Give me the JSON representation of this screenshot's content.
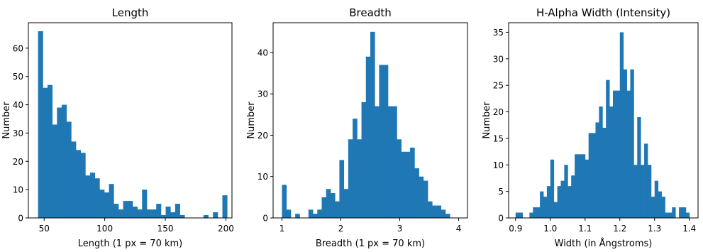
{
  "chart_data": [
    {
      "type": "bar",
      "title": "Length",
      "xlabel": "Length (1 px = 70 km)",
      "ylabel": "Number",
      "xlim": [
        37,
        205
      ],
      "ylim": [
        0,
        69
      ],
      "xticks": [
        50,
        100,
        150,
        200
      ],
      "yticks": [
        0,
        10,
        20,
        30,
        40,
        50,
        60
      ],
      "bin_start": 45,
      "bin_width": 3.9,
      "values": [
        66,
        46,
        47,
        33,
        39,
        40,
        34,
        27,
        24,
        23,
        15,
        16,
        14,
        10,
        9,
        12,
        5,
        3,
        6,
        6,
        4,
        3,
        10,
        3,
        3,
        5,
        1,
        4,
        2,
        5,
        1,
        0,
        0,
        0,
        0,
        1,
        0,
        2,
        0,
        8
      ],
      "color": "#1f77b4"
    },
    {
      "type": "bar",
      "title": "Breadth",
      "xlabel": "Breadth (1 px = 70 km)",
      "ylabel": "Number",
      "xlim": [
        0.85,
        4.15
      ],
      "ylim": [
        0,
        47.2
      ],
      "xticks": [
        1,
        2,
        3,
        4
      ],
      "yticks": [
        0,
        10,
        20,
        30,
        40
      ],
      "bin_start": 1.0,
      "bin_width": 0.075,
      "values": [
        8,
        2,
        0,
        1,
        0,
        0,
        2,
        1,
        2,
        5,
        7,
        6,
        4,
        14,
        7,
        19,
        24,
        19,
        28,
        39,
        45,
        27,
        37,
        37,
        27,
        27,
        19,
        16,
        16,
        17,
        12,
        10,
        9,
        4,
        3,
        3,
        2,
        1
      ],
      "color": "#1f77b4"
    },
    {
      "type": "bar",
      "title": "H-Alpha Width (Intensity)",
      "xlabel": "Width (in Ångstroms)",
      "ylabel": "Number",
      "xlim": [
        0.88,
        1.425
      ],
      "ylim": [
        0,
        36.8
      ],
      "xticks": [
        0.9,
        1.0,
        1.1,
        1.2,
        1.3,
        1.4
      ],
      "yticks": [
        0,
        5,
        10,
        15,
        20,
        25,
        30,
        35
      ],
      "bin_start": 0.9,
      "bin_width": 0.01,
      "values": [
        1,
        1,
        0,
        0,
        1,
        2,
        2,
        5,
        4,
        6,
        11,
        3,
        6,
        7,
        10,
        6,
        8,
        12,
        12,
        12,
        11,
        16,
        16,
        18,
        21,
        17,
        26,
        21,
        24,
        24,
        35,
        28,
        24,
        28,
        10,
        19,
        10,
        14,
        10,
        4,
        7,
        5,
        4,
        1,
        1,
        2,
        0,
        2,
        2,
        1
      ],
      "color": "#1f77b4"
    }
  ]
}
